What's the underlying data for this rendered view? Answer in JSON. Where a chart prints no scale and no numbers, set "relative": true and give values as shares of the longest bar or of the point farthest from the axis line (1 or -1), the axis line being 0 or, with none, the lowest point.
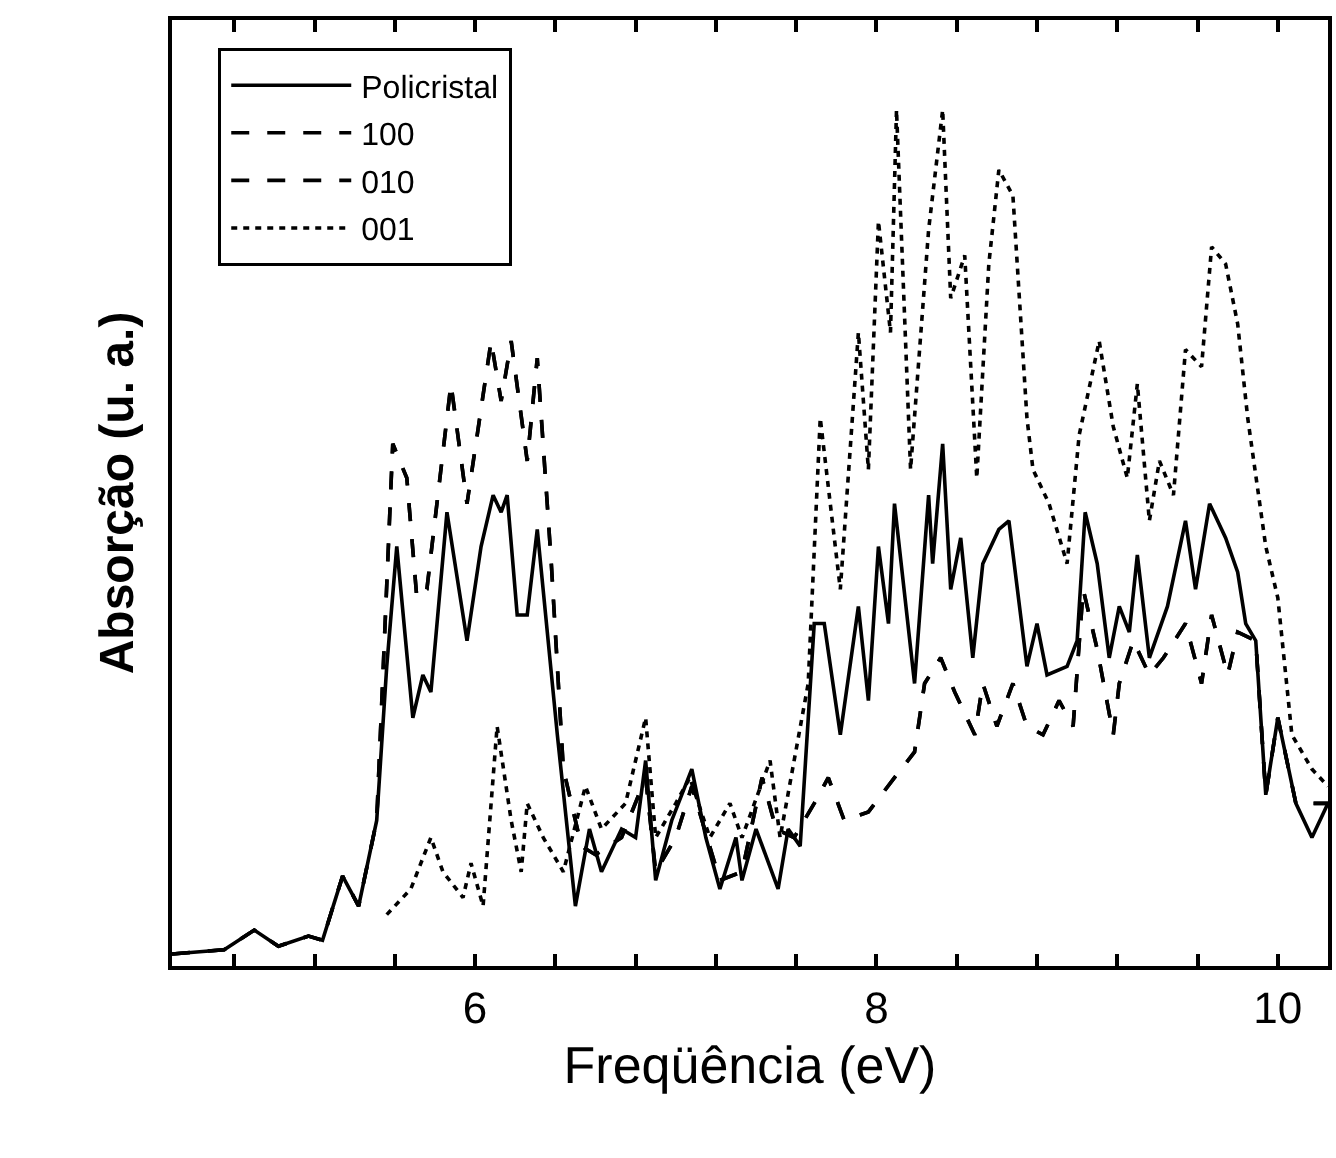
{
  "chart_data": {
    "type": "line",
    "xlabel": "Freqüência (eV)",
    "ylabel": "Absorção (u. a.)",
    "relative": true,
    "xlim": [
      4.49,
      10.25
    ],
    "xticks": [
      {
        "value": 4.8,
        "label": null
      },
      {
        "value": 5.2,
        "label": null
      },
      {
        "value": 5.6,
        "label": null
      },
      6,
      {
        "value": 6.4,
        "label": null
      },
      {
        "value": 6.8,
        "label": null
      },
      {
        "value": 7.2,
        "label": null
      },
      {
        "value": 7.6,
        "label": null
      },
      8,
      {
        "value": 8.4,
        "label": null
      },
      {
        "value": 8.8,
        "label": null
      },
      {
        "value": 9.2,
        "label": null
      },
      {
        "value": 9.6,
        "label": null
      },
      10
    ],
    "grid": false,
    "legend": "top left",
    "marker": "none",
    "series": [
      {
        "name": "Policristal",
        "color": "#000000",
        "line_style": "solid",
        "x": [
          4.49,
          4.75,
          4.9,
          5.02,
          5.17,
          5.24,
          5.34,
          5.42,
          5.51,
          5.56,
          5.61,
          5.69,
          5.74,
          5.78,
          5.86,
          5.96,
          6.03,
          6.09,
          6.13,
          6.16,
          6.21,
          6.26,
          6.31,
          6.41,
          6.5,
          6.57,
          6.63,
          6.73,
          6.8,
          6.85,
          6.9,
          6.98,
          7.08,
          7.15,
          7.22,
          7.3,
          7.33,
          7.4,
          7.51,
          7.56,
          7.62,
          7.69,
          7.74,
          7.82,
          7.91,
          7.96,
          8.01,
          8.06,
          8.09,
          8.19,
          8.26,
          8.28,
          8.33,
          8.37,
          8.42,
          8.48,
          8.53,
          8.61,
          8.66,
          8.75,
          8.8,
          8.85,
          8.95,
          9.0,
          9.04,
          9.1,
          9.16,
          9.21,
          9.26,
          9.3,
          9.36,
          9.45,
          9.54,
          9.59,
          9.66,
          9.74,
          9.8,
          9.84,
          9.89,
          9.94,
          10.0,
          10.09,
          10.17,
          10.25
        ],
        "values": [
          0.014,
          0.019,
          0.042,
          0.023,
          0.035,
          0.03,
          0.105,
          0.07,
          0.17,
          0.35,
          0.49,
          0.29,
          0.34,
          0.32,
          0.53,
          0.38,
          0.49,
          0.55,
          0.53,
          0.55,
          0.41,
          0.41,
          0.51,
          0.27,
          0.07,
          0.16,
          0.11,
          0.16,
          0.15,
          0.24,
          0.1,
          0.17,
          0.23,
          0.15,
          0.09,
          0.15,
          0.1,
          0.16,
          0.09,
          0.16,
          0.14,
          0.4,
          0.4,
          0.27,
          0.42,
          0.31,
          0.49,
          0.4,
          0.54,
          0.33,
          0.55,
          0.47,
          0.61,
          0.44,
          0.5,
          0.36,
          0.47,
          0.51,
          0.52,
          0.35,
          0.4,
          0.34,
          0.35,
          0.38,
          0.53,
          0.47,
          0.36,
          0.42,
          0.39,
          0.48,
          0.36,
          0.42,
          0.52,
          0.44,
          0.54,
          0.5,
          0.46,
          0.4,
          0.38,
          0.2,
          0.29,
          0.19,
          0.15,
          0.19
        ]
      },
      {
        "name": "100",
        "color": "#000000",
        "line_style": "dashed",
        "x": [
          4.49,
          4.75,
          4.9,
          5.02,
          5.17,
          5.24,
          5.34,
          5.42,
          5.51,
          5.59,
          5.66,
          5.71,
          5.76,
          5.88,
          5.96,
          6.08,
          6.13,
          6.18,
          6.26,
          6.31,
          6.38,
          6.44,
          6.53,
          6.6,
          6.73,
          6.85,
          6.9,
          7.0,
          7.08,
          7.22,
          7.33,
          7.43,
          7.5,
          7.59,
          7.69,
          7.76,
          7.84,
          7.96,
          8.09,
          8.19,
          8.24,
          8.32,
          8.39,
          8.49,
          8.53,
          8.6,
          8.68,
          8.75,
          8.83,
          8.91,
          8.98,
          9.03,
          9.1,
          9.18,
          9.21,
          9.28,
          9.36,
          9.43,
          9.54,
          9.62,
          9.67,
          9.75,
          9.8,
          9.89,
          9.94,
          10.0,
          10.09,
          10.25
        ],
        "values": [
          0.014,
          0.019,
          0.042,
          0.023,
          0.035,
          0.03,
          0.105,
          0.07,
          0.17,
          0.61,
          0.57,
          0.43,
          0.44,
          0.68,
          0.54,
          0.73,
          0.66,
          0.73,
          0.59,
          0.71,
          0.47,
          0.23,
          0.14,
          0.13,
          0.15,
          0.22,
          0.11,
          0.15,
          0.21,
          0.1,
          0.11,
          0.22,
          0.16,
          0.15,
          0.19,
          0.22,
          0.17,
          0.18,
          0.22,
          0.25,
          0.33,
          0.36,
          0.32,
          0.27,
          0.33,
          0.28,
          0.33,
          0.28,
          0.27,
          0.31,
          0.28,
          0.44,
          0.37,
          0.27,
          0.33,
          0.38,
          0.34,
          0.36,
          0.4,
          0.33,
          0.41,
          0.34,
          0.39,
          0.38,
          0.2,
          0.29,
          0.19,
          0.19
        ]
      },
      {
        "name": "010",
        "color": "#000000",
        "line_style": "dashed",
        "x": [
          4.49,
          4.75,
          4.9,
          5.02,
          5.17,
          5.24,
          5.34,
          5.42,
          5.51,
          5.59,
          5.66,
          5.71,
          5.76,
          5.88,
          5.96,
          6.08,
          6.13,
          6.18,
          6.26,
          6.31,
          6.38,
          6.44,
          6.53,
          6.6,
          6.73,
          6.85,
          6.9,
          7.0,
          7.08,
          7.22,
          7.33,
          7.43,
          7.5,
          7.59,
          7.69,
          7.76,
          7.84,
          7.96,
          8.09,
          8.19,
          8.24,
          8.32,
          8.39,
          8.49,
          8.53,
          8.6,
          8.68,
          8.75,
          8.83,
          8.91,
          8.98,
          9.03,
          9.1,
          9.18,
          9.21,
          9.28,
          9.36,
          9.43,
          9.54,
          9.62,
          9.67,
          9.75,
          9.8,
          9.89,
          9.94,
          10.0,
          10.09,
          10.25
        ],
        "values": [
          0.014,
          0.019,
          0.042,
          0.023,
          0.035,
          0.03,
          0.105,
          0.07,
          0.17,
          0.61,
          0.57,
          0.43,
          0.44,
          0.68,
          0.54,
          0.73,
          0.66,
          0.73,
          0.59,
          0.71,
          0.47,
          0.23,
          0.14,
          0.13,
          0.15,
          0.22,
          0.11,
          0.15,
          0.21,
          0.1,
          0.11,
          0.22,
          0.16,
          0.15,
          0.19,
          0.22,
          0.17,
          0.18,
          0.22,
          0.25,
          0.33,
          0.36,
          0.32,
          0.27,
          0.33,
          0.28,
          0.33,
          0.28,
          0.27,
          0.31,
          0.28,
          0.44,
          0.37,
          0.27,
          0.33,
          0.38,
          0.34,
          0.36,
          0.4,
          0.33,
          0.41,
          0.34,
          0.39,
          0.38,
          0.2,
          0.29,
          0.19,
          0.19
        ]
      },
      {
        "name": "001",
        "color": "#000000",
        "line_style": "dotted",
        "x": [
          5.56,
          5.68,
          5.78,
          5.84,
          5.94,
          5.98,
          6.04,
          6.11,
          6.18,
          6.23,
          6.26,
          6.34,
          6.44,
          6.55,
          6.63,
          6.75,
          6.85,
          6.9,
          7.0,
          7.07,
          7.17,
          7.27,
          7.33,
          7.47,
          7.52,
          7.66,
          7.72,
          7.82,
          7.91,
          7.96,
          8.01,
          8.07,
          8.1,
          8.17,
          8.26,
          8.33,
          8.37,
          8.44,
          8.5,
          8.56,
          8.61,
          8.68,
          8.75,
          8.78,
          8.86,
          8.95,
          9.01,
          9.11,
          9.18,
          9.25,
          9.3,
          9.36,
          9.41,
          9.48,
          9.54,
          9.62,
          9.67,
          9.74,
          9.8,
          9.85,
          9.94,
          10.0,
          10.07,
          10.17,
          10.25
        ],
        "values": [
          0.06,
          0.09,
          0.15,
          0.11,
          0.08,
          0.12,
          0.07,
          0.28,
          0.17,
          0.11,
          0.19,
          0.15,
          0.11,
          0.21,
          0.16,
          0.19,
          0.29,
          0.15,
          0.19,
          0.22,
          0.15,
          0.19,
          0.15,
          0.24,
          0.15,
          0.33,
          0.64,
          0.44,
          0.74,
          0.58,
          0.87,
          0.74,
          1.0,
          0.58,
          0.86,
          1.0,
          0.78,
          0.83,
          0.57,
          0.82,
          0.93,
          0.9,
          0.64,
          0.58,
          0.54,
          0.47,
          0.62,
          0.73,
          0.63,
          0.57,
          0.68,
          0.52,
          0.59,
          0.55,
          0.72,
          0.7,
          0.84,
          0.82,
          0.75,
          0.64,
          0.49,
          0.43,
          0.27,
          0.23,
          0.21
        ]
      }
    ]
  }
}
